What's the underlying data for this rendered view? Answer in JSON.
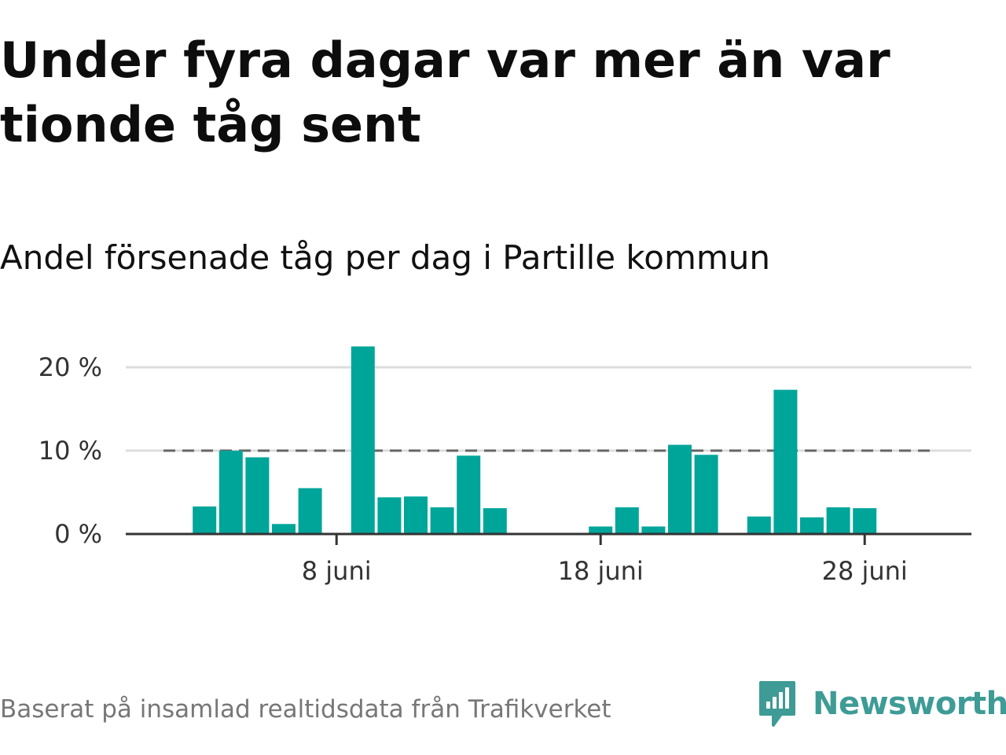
{
  "title": "Under fyra dagar var mer än var tionde tåg sent",
  "subtitle": "Andel försenade tåg per dag i Partille kommun",
  "footer": "Baserat på insamlad realtidsdata från Trafikverket",
  "brand": {
    "name": "Newsworthy",
    "color": "#3e9b96"
  },
  "colors": {
    "bar": "#00a59a",
    "reference_line": "#666666",
    "grid": "#dddddd",
    "axis": "#333333"
  },
  "chart_data": {
    "type": "bar",
    "x": [
      "2024-06-01",
      "2024-06-02",
      "2024-06-03",
      "2024-06-04",
      "2024-06-05",
      "2024-06-06",
      "2024-06-07",
      "2024-06-08",
      "2024-06-09",
      "2024-06-10",
      "2024-06-11",
      "2024-06-12",
      "2024-06-13",
      "2024-06-14",
      "2024-06-15",
      "2024-06-16",
      "2024-06-17",
      "2024-06-18",
      "2024-06-19",
      "2024-06-20",
      "2024-06-21",
      "2024-06-22",
      "2024-06-23",
      "2024-06-24",
      "2024-06-25",
      "2024-06-26",
      "2024-06-27",
      "2024-06-28",
      "2024-06-29",
      "2024-06-30"
    ],
    "values": [
      null,
      null,
      3.3,
      10.0,
      9.2,
      1.2,
      5.5,
      null,
      22.5,
      4.4,
      4.5,
      3.2,
      9.4,
      3.1,
      null,
      null,
      null,
      0.9,
      3.2,
      0.9,
      10.7,
      9.5,
      null,
      2.1,
      17.3,
      2.0,
      3.2,
      3.1,
      null,
      null
    ],
    "reference_line": {
      "value": 10,
      "style": "dashed"
    },
    "xticks": [
      {
        "x": "2024-06-08",
        "label": "8 juni"
      },
      {
        "x": "2024-06-18",
        "label": "18 juni"
      },
      {
        "x": "2024-06-28",
        "label": "28 juni"
      }
    ],
    "yticks": [
      {
        "value": 0,
        "label": "0 %"
      },
      {
        "value": 10,
        "label": "10 %"
      },
      {
        "value": 20,
        "label": "20 %"
      }
    ],
    "ylim": [
      0,
      22.5
    ],
    "grid": "horizontal"
  }
}
